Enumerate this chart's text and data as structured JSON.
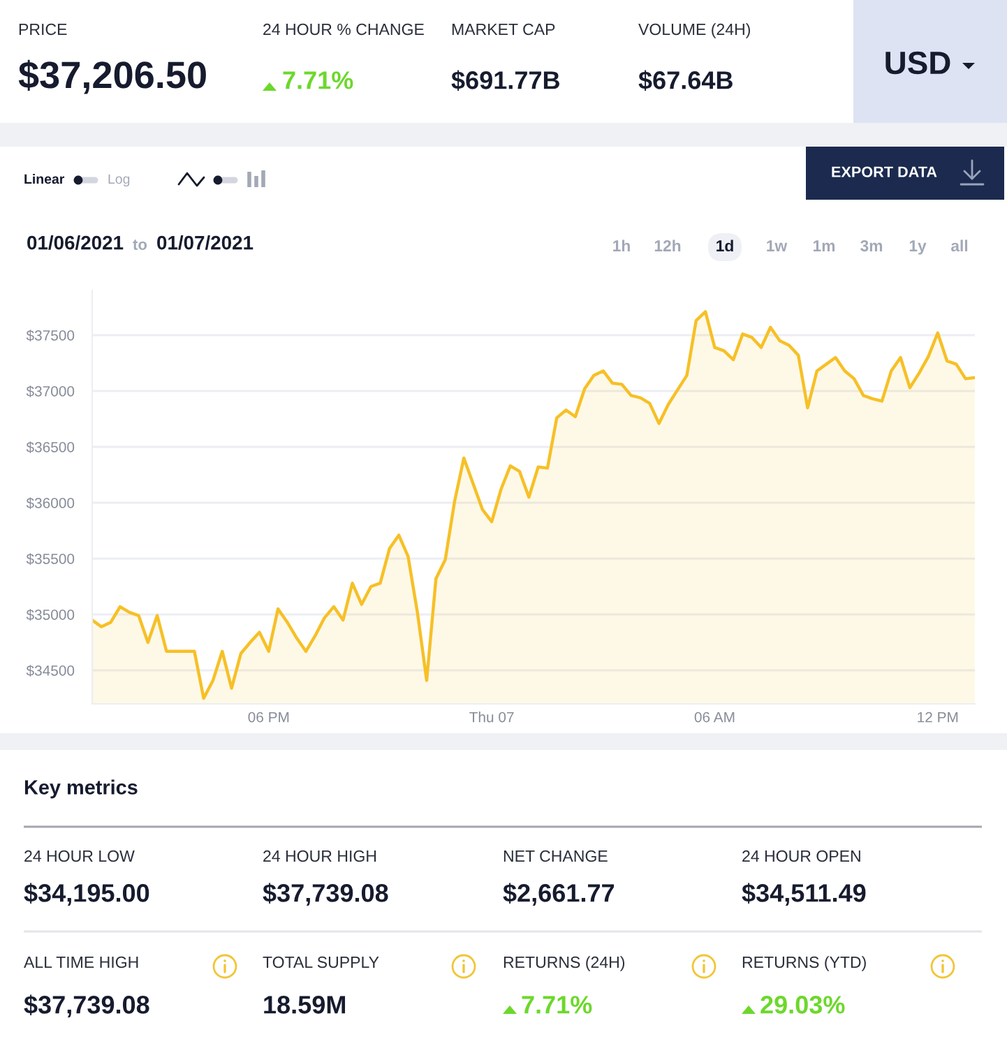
{
  "chart_data": [
    {
      "type": "other",
      "annotations": [
        "PRICE",
        "$37,206.50",
        "24 HOUR % CHANGE",
        "7.71%",
        "MARKET CAP",
        "$691.77B",
        "VOLUME (24H)",
        "$67.64B",
        "USD"
      ]
    },
    {
      "type": "area",
      "annotations": [
        "Linear",
        "Log",
        "EXPORT DATA",
        "01/06/2021",
        "to",
        "01/07/2021",
        "1h",
        "12h",
        "1d",
        "1w",
        "1m",
        "3m",
        "1y",
        "all"
      ],
      "x": [
        "2021-01-06T13:15",
        "2021-01-06T13:30",
        "2021-01-06T13:45",
        "2021-01-06T14:00",
        "2021-01-06T14:15",
        "2021-01-06T14:30",
        "2021-01-06T14:45",
        "2021-01-06T15:00",
        "2021-01-06T15:15",
        "2021-01-06T15:30",
        "2021-01-06T15:45",
        "2021-01-06T16:00",
        "2021-01-06T16:15",
        "2021-01-06T16:30",
        "2021-01-06T16:45",
        "2021-01-06T17:00",
        "2021-01-06T17:15",
        "2021-01-06T17:30",
        "2021-01-06T17:45",
        "2021-01-06T18:00",
        "2021-01-06T18:15",
        "2021-01-06T18:30",
        "2021-01-06T18:45",
        "2021-01-06T19:00",
        "2021-01-06T19:15",
        "2021-01-06T19:30",
        "2021-01-06T19:45",
        "2021-01-06T20:00",
        "2021-01-06T20:15",
        "2021-01-06T20:30",
        "2021-01-06T20:45",
        "2021-01-06T21:00",
        "2021-01-06T21:15",
        "2021-01-06T21:30",
        "2021-01-06T21:45",
        "2021-01-06T22:00",
        "2021-01-06T22:15",
        "2021-01-06T22:30",
        "2021-01-06T22:45",
        "2021-01-06T23:00",
        "2021-01-06T23:15",
        "2021-01-06T23:30",
        "2021-01-06T23:45",
        "2021-01-07T00:00",
        "2021-01-07T00:15",
        "2021-01-07T00:30",
        "2021-01-07T00:45",
        "2021-01-07T01:00",
        "2021-01-07T01:15",
        "2021-01-07T01:30",
        "2021-01-07T01:45",
        "2021-01-07T02:00",
        "2021-01-07T02:15",
        "2021-01-07T02:30",
        "2021-01-07T02:45",
        "2021-01-07T03:00",
        "2021-01-07T03:15",
        "2021-01-07T03:30",
        "2021-01-07T03:45",
        "2021-01-07T04:00",
        "2021-01-07T04:15",
        "2021-01-07T04:30",
        "2021-01-07T04:45",
        "2021-01-07T05:00",
        "2021-01-07T05:15",
        "2021-01-07T05:30",
        "2021-01-07T05:45",
        "2021-01-07T06:00",
        "2021-01-07T06:15",
        "2021-01-07T06:30",
        "2021-01-07T06:45",
        "2021-01-07T07:00",
        "2021-01-07T07:15",
        "2021-01-07T07:30",
        "2021-01-07T07:45",
        "2021-01-07T08:00",
        "2021-01-07T08:15",
        "2021-01-07T08:30",
        "2021-01-07T08:45",
        "2021-01-07T09:00",
        "2021-01-07T09:15",
        "2021-01-07T09:30",
        "2021-01-07T09:45",
        "2021-01-07T10:00",
        "2021-01-07T10:15",
        "2021-01-07T10:30",
        "2021-01-07T10:45",
        "2021-01-07T11:00",
        "2021-01-07T11:15",
        "2021-01-07T11:30",
        "2021-01-07T11:45",
        "2021-01-07T12:00",
        "2021-01-07T12:15",
        "2021-01-07T12:30",
        "2021-01-07T12:45",
        "2021-01-07T13:00"
      ],
      "values": [
        34950,
        34890,
        34930,
        35070,
        35020,
        34990,
        34750,
        34990,
        34670,
        34670,
        34670,
        34670,
        34250,
        34410,
        34670,
        34340,
        34650,
        34750,
        34840,
        34670,
        35050,
        34930,
        34790,
        34670,
        34810,
        34970,
        35070,
        34950,
        35280,
        35090,
        35250,
        35280,
        35590,
        35710,
        35520,
        35020,
        34410,
        35320,
        35490,
        36010,
        36400,
        36170,
        35940,
        35830,
        36120,
        36330,
        36280,
        36050,
        36320,
        36310,
        36760,
        36830,
        36770,
        37020,
        37140,
        37180,
        37070,
        37060,
        36960,
        36940,
        36890,
        36710,
        36880,
        37010,
        37140,
        37630,
        37710,
        37390,
        37360,
        37280,
        37510,
        37480,
        37390,
        37570,
        37450,
        37410,
        37320,
        36850,
        37180,
        37240,
        37300,
        37180,
        37110,
        36960,
        36930,
        36910,
        37180,
        37300,
        37030,
        37160,
        37310,
        37520,
        37270,
        37240,
        37110,
        37120
      ],
      "color": "#f6c026",
      "xlim": [
        "2021-01-06T13:15",
        "2021-01-07T13:00"
      ],
      "xticks": [
        {
          "value": "2021-01-06T18:00",
          "label": "06 PM"
        },
        {
          "value": "2021-01-07T00:00",
          "label": "Thu 07"
        },
        {
          "value": "2021-01-07T06:00",
          "label": "06 AM"
        },
        {
          "value": "2021-01-07T12:00",
          "label": "12 PM"
        }
      ],
      "ylim": [
        34200,
        37900
      ],
      "yticks": [
        {
          "value": 34500,
          "label": "$34500"
        },
        {
          "value": 35000,
          "label": "$35000"
        },
        {
          "value": 35500,
          "label": "$35500"
        },
        {
          "value": 36000,
          "label": "$36000"
        },
        {
          "value": 36500,
          "label": "$36500"
        },
        {
          "value": 37000,
          "label": "$37000"
        },
        {
          "value": 37500,
          "label": "$37500"
        }
      ],
      "grid": "y"
    },
    {
      "type": "other",
      "title": "Key metrics",
      "annotations": [
        "24 HOUR LOW",
        "$34,195.00",
        "24 HOUR HIGH",
        "$37,739.08",
        "NET CHANGE",
        "$2,661.77",
        "24 HOUR OPEN",
        "$34,511.49",
        "ALL TIME HIGH",
        "$37,739.08",
        "TOTAL SUPPLY",
        "18.59M",
        "RETURNS (24H)",
        "7.71%",
        "RETURNS (YTD)",
        "29.03%"
      ]
    }
  ]
}
